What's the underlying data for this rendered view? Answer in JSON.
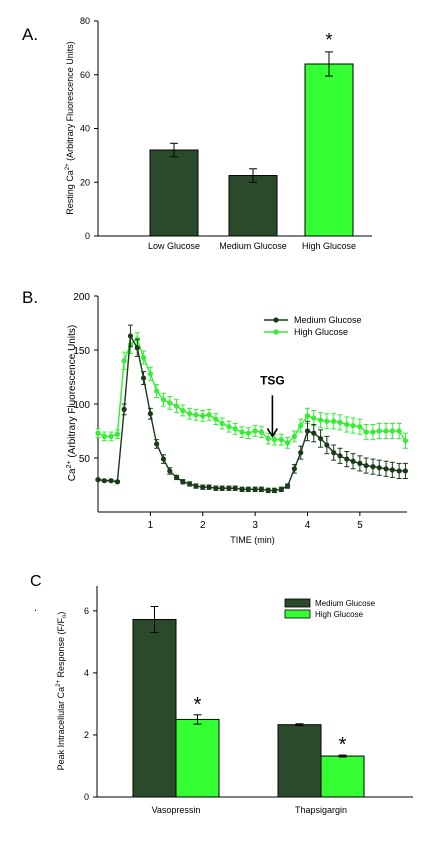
{
  "colors": {
    "dark": "#2b4a2b",
    "bright": "#33ff33",
    "medium_line": "#1a3a1a",
    "high_line": "#33ee33"
  },
  "chart_data": [
    {
      "panel_label": "A.",
      "type": "bar",
      "ylabel_parts": [
        "Resting Ca",
        "2+",
        " (Arbitrary Fluorescence Units)"
      ],
      "ylim": [
        0,
        80
      ],
      "yticks": [
        0,
        20,
        40,
        60,
        80
      ],
      "categories": [
        "Low Glucose",
        "Medium Glucose",
        "High Glucose"
      ],
      "values": [
        32,
        22.5,
        64
      ],
      "errors": [
        2.5,
        2.5,
        4.5
      ],
      "bar_colors": [
        "dark",
        "dark",
        "bright"
      ],
      "annotations": [
        {
          "category": "High Glucose",
          "text": "*"
        }
      ]
    },
    {
      "panel_label": "B.",
      "type": "line",
      "ylabel_parts": [
        "Ca",
        "2+",
        " (Arbitrary Fluorescence Units)"
      ],
      "xlabel": "TIME (min)",
      "xlim": [
        0,
        5.9
      ],
      "ylim": [
        0,
        200
      ],
      "xticks": [
        1,
        2,
        3,
        4,
        5
      ],
      "yticks": [
        50,
        100,
        150,
        200
      ],
      "legend_position": "top-right",
      "annotation": {
        "text": "TSG",
        "x": 3.33,
        "y_text": 118,
        "y_arrow_start": 108,
        "y_arrow_end": 70
      },
      "series": [
        {
          "name": "Medium Glucose",
          "color": "medium_line",
          "x": [
            0.0,
            0.12,
            0.25,
            0.37,
            0.5,
            0.62,
            0.75,
            0.87,
            1.0,
            1.12,
            1.25,
            1.37,
            1.5,
            1.62,
            1.75,
            1.87,
            2.0,
            2.12,
            2.25,
            2.37,
            2.5,
            2.62,
            2.75,
            2.87,
            3.0,
            3.12,
            3.25,
            3.37,
            3.5,
            3.62,
            3.75,
            3.87,
            4.0,
            4.12,
            4.25,
            4.37,
            4.5,
            4.62,
            4.75,
            4.87,
            5.0,
            5.12,
            5.25,
            5.37,
            5.5,
            5.62,
            5.75,
            5.87
          ],
          "y": [
            30,
            29,
            29,
            28,
            95,
            163,
            152,
            124,
            91,
            63,
            49,
            38,
            32,
            28,
            26,
            24,
            23,
            23,
            22,
            22,
            22,
            22,
            21,
            21,
            21,
            21,
            20,
            20,
            21,
            24,
            40,
            55,
            75,
            73,
            68,
            62,
            55,
            52,
            49,
            47,
            45,
            43,
            42,
            41,
            40,
            39,
            38,
            38
          ],
          "err": [
            1,
            1,
            1,
            1,
            5,
            10,
            8,
            6,
            5,
            4,
            4,
            3,
            2,
            2,
            2,
            2,
            2,
            2,
            2,
            2,
            2,
            2,
            2,
            2,
            2,
            2,
            2,
            2,
            2,
            2,
            4,
            6,
            9,
            8,
            8,
            8,
            7,
            7,
            7,
            7,
            7,
            7,
            7,
            7,
            7,
            7,
            7,
            7
          ]
        },
        {
          "name": "High Glucose",
          "color": "high_line",
          "x": [
            0.0,
            0.12,
            0.25,
            0.37,
            0.5,
            0.62,
            0.75,
            0.87,
            1.0,
            1.12,
            1.25,
            1.37,
            1.5,
            1.62,
            1.75,
            1.87,
            2.0,
            2.12,
            2.25,
            2.37,
            2.5,
            2.62,
            2.75,
            2.87,
            3.0,
            3.12,
            3.25,
            3.37,
            3.5,
            3.62,
            3.75,
            3.87,
            4.0,
            4.12,
            4.25,
            4.37,
            4.5,
            4.62,
            4.75,
            4.87,
            5.0,
            5.12,
            5.25,
            5.37,
            5.5,
            5.62,
            5.75,
            5.87
          ],
          "y": [
            73,
            70,
            70,
            72,
            140,
            155,
            160,
            143,
            128,
            112,
            104,
            101,
            98,
            94,
            91,
            90,
            89,
            90,
            86,
            82,
            79,
            77,
            74,
            73,
            75,
            74,
            68,
            67,
            67,
            64,
            70,
            80,
            89,
            87,
            85,
            84,
            84,
            83,
            81,
            80,
            79,
            74,
            74,
            75,
            75,
            75,
            75,
            66
          ],
          "err": [
            4,
            4,
            4,
            4,
            8,
            8,
            6,
            6,
            6,
            6,
            6,
            6,
            6,
            5,
            5,
            5,
            5,
            5,
            5,
            5,
            5,
            5,
            5,
            5,
            5,
            5,
            5,
            5,
            5,
            5,
            5,
            6,
            7,
            7,
            7,
            7,
            7,
            7,
            7,
            7,
            7,
            7,
            7,
            7,
            7,
            7,
            7,
            7
          ]
        }
      ]
    },
    {
      "panel_label": "C",
      "stray_mark": ".",
      "type": "bar",
      "ylabel_parts": [
        "Peak Intracellular Ca",
        "2+",
        " Response (F/F",
        "o",
        ")"
      ],
      "ylim": [
        0,
        6.8
      ],
      "yticks": [
        0,
        2,
        4,
        6
      ],
      "categories": [
        "Vasopressin",
        "Thapsigargin"
      ],
      "legend_position": "top-right",
      "series": [
        {
          "name": "Medium Glucose",
          "color": "dark",
          "values": [
            5.72,
            2.33
          ],
          "errors": [
            0.42,
            0.03
          ]
        },
        {
          "name": "High Glucose",
          "color": "bright",
          "values": [
            2.5,
            1.32
          ],
          "errors": [
            0.15,
            0.03
          ]
        }
      ],
      "annotations": [
        {
          "category": "Vasopressin",
          "series": "High Glucose",
          "text": "*"
        },
        {
          "category": "Thapsigargin",
          "series": "High Glucose",
          "text": "*"
        }
      ]
    }
  ]
}
